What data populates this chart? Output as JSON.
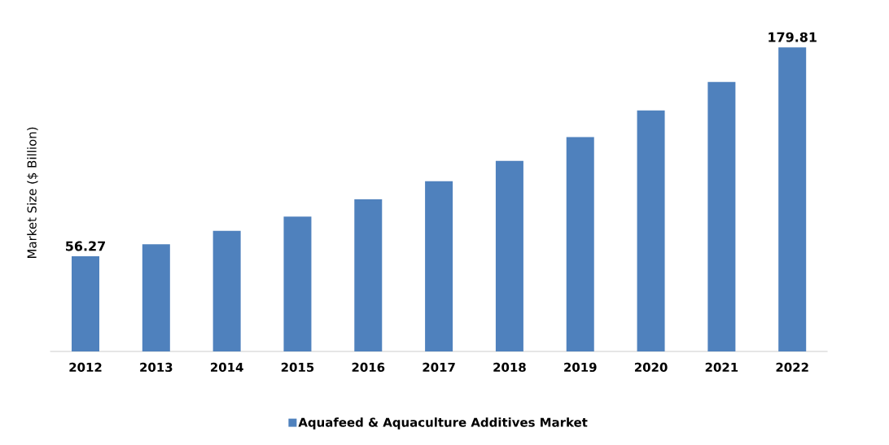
{
  "chart_data": {
    "type": "bar",
    "ylabel": "Market Size ($ Billion)",
    "categories": [
      "2012",
      "2013",
      "2014",
      "2015",
      "2016",
      "2017",
      "2018",
      "2019",
      "2020",
      "2021",
      "2022"
    ],
    "series": [
      {
        "name": "Aquafeed & Aquaculture Additives Market",
        "color": "#4f81bd",
        "values": [
          56.27,
          63.4,
          71.3,
          79.7,
          89.9,
          100.6,
          112.7,
          126.7,
          142.5,
          159.3,
          179.81
        ],
        "value_labels": [
          "56.27",
          null,
          null,
          null,
          null,
          null,
          null,
          null,
          null,
          null,
          "179.81"
        ]
      }
    ],
    "legend": "bottom"
  }
}
